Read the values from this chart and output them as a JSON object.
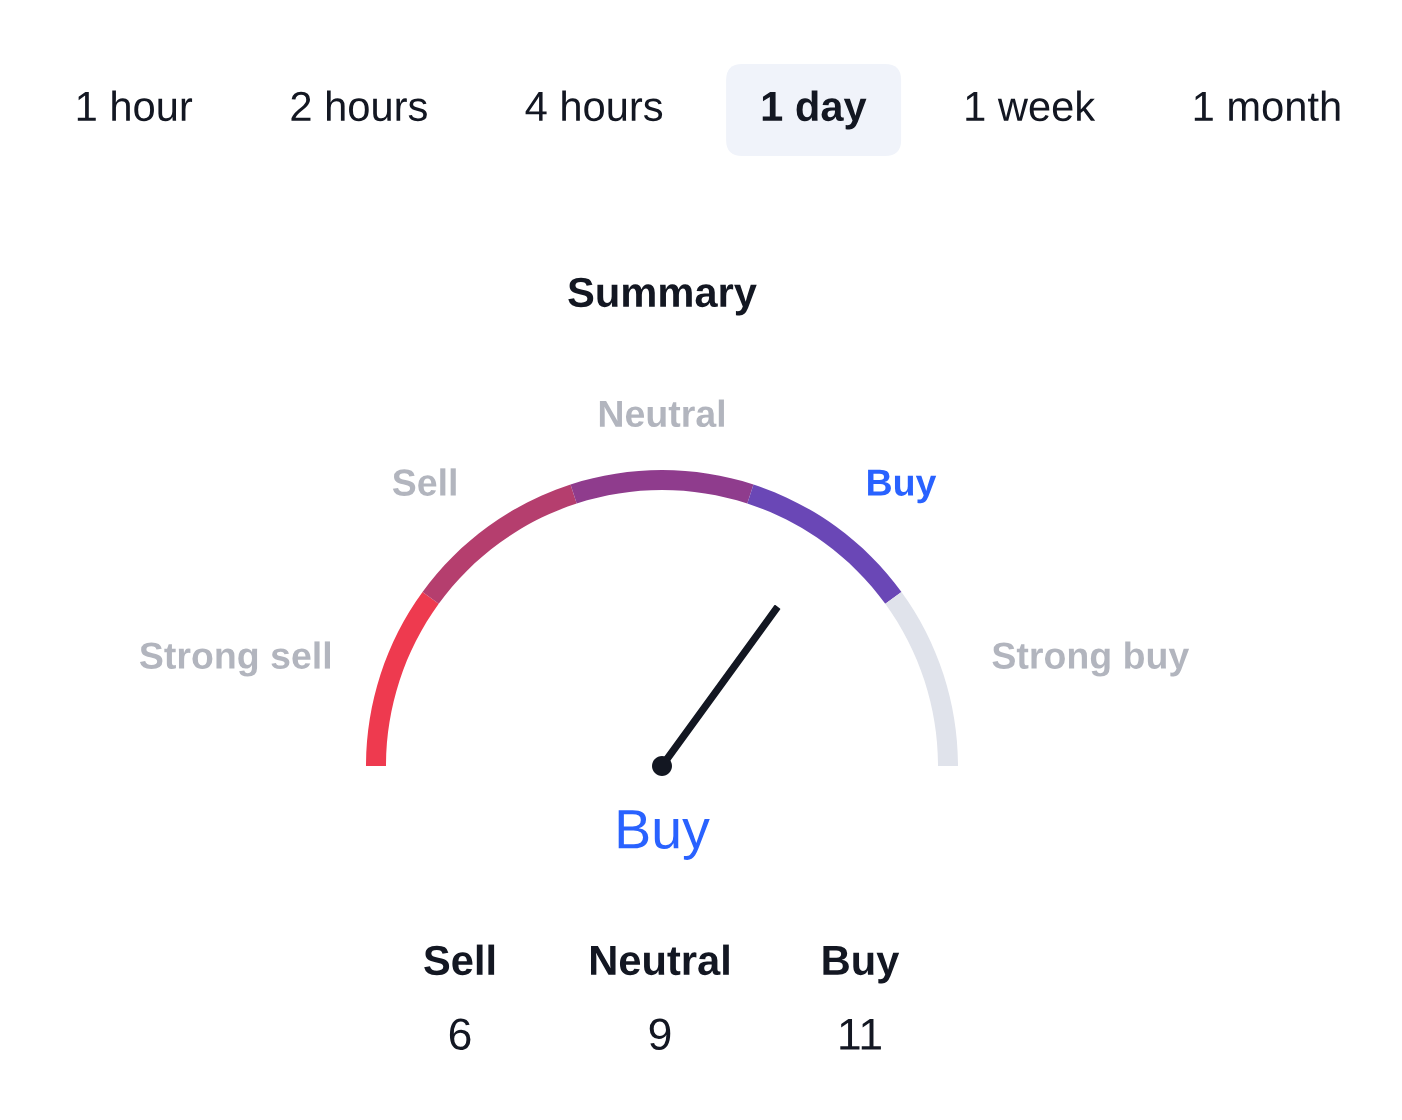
{
  "chart_data": [
    {
      "type": "other",
      "categories": [
        "1 hour",
        "2 hours",
        "4 hours",
        "1 day",
        "1 week",
        "1 month"
      ],
      "colors": [
        null,
        null,
        null,
        "#f0f3fa",
        null,
        null
      ]
    },
    {
      "type": "donut",
      "title": "Summary",
      "categories": [
        "Strong sell",
        "Sell",
        "Neutral",
        "Buy",
        "Strong buy"
      ],
      "values": [
        20,
        20,
        20,
        20,
        20
      ],
      "colors": [
        "#ee3a4f",
        "#b53e6e",
        "#8f3c8d",
        "#6a47b6",
        "#e0e3eb"
      ],
      "needle": "Buy"
    },
    {
      "type": "other",
      "categories": [
        "Sell",
        "Neutral",
        "Buy"
      ],
      "values": [
        6,
        9,
        11
      ],
      "data_labels": true
    }
  ]
}
